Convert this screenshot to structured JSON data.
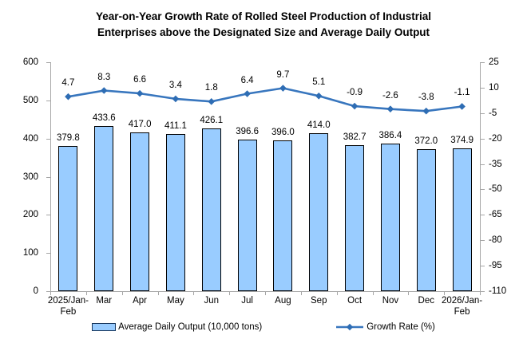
{
  "title": "Year-on-Year Growth Rate of Rolled Steel Production of Industrial\nEnterprises above the Designated Size and Average Daily Output",
  "legend": {
    "bar_label": "Average Daily Output (10,000 tons)",
    "line_label": "Growth Rate (%)"
  },
  "colors": {
    "bar_fill": "#99CCFF",
    "bar_border": "#000000",
    "line": "#3876BE",
    "marker": "#2E6DB4",
    "axis": "#A6A6A6",
    "legend_swatch_border": "#17375E",
    "text": "#000000"
  },
  "chart_data": {
    "type": "bar+line",
    "title": "Year-on-Year Growth Rate of Rolled Steel Production of Industrial Enterprises above the Designated Size and Average Daily Output",
    "categories": [
      "2025/Jan-\nFeb",
      "Mar",
      "Apr",
      "May",
      "Jun",
      "Jul",
      "Aug",
      "Sep",
      "Oct",
      "Nov",
      "Dec",
      "2026/Jan-\nFeb"
    ],
    "series": [
      {
        "name": "Average Daily Output (10,000 tons)",
        "type": "bar",
        "axis": "left",
        "values": [
          379.8,
          433.6,
          417.0,
          411.1,
          426.1,
          396.6,
          396.0,
          414.0,
          382.7,
          386.4,
          372.0,
          374.9
        ]
      },
      {
        "name": "Growth Rate (%)",
        "type": "line",
        "axis": "right",
        "values": [
          4.7,
          8.3,
          6.6,
          3.4,
          1.8,
          6.4,
          9.7,
          5.1,
          -0.9,
          -2.6,
          -3.8,
          -1.1
        ]
      }
    ],
    "left_axis": {
      "min": 0,
      "max": 600,
      "ticks": [
        600,
        500,
        400,
        300,
        200,
        100,
        0
      ]
    },
    "right_axis": {
      "min": -110,
      "max": 25,
      "ticks": [
        25,
        10,
        -5,
        -20,
        -35,
        -50,
        -65,
        -80,
        -95,
        -110
      ]
    },
    "grid": false,
    "legend_position": "bottom",
    "data_labels": true
  }
}
